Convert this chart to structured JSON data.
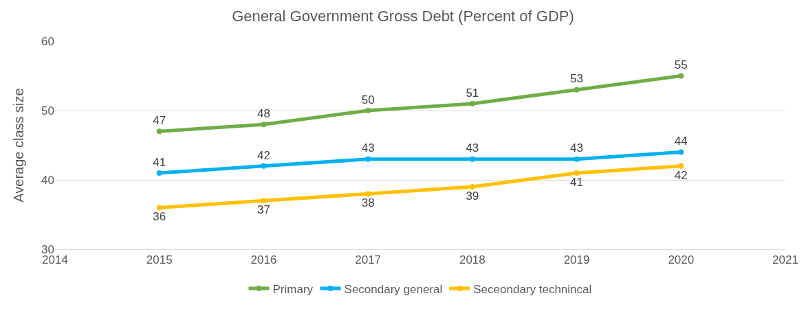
{
  "chart_data": {
    "type": "line",
    "title": "General Government Gross Debt (Percent of GDP)",
    "ylabel": "Average class size",
    "x": [
      2015,
      2016,
      2017,
      2018,
      2019,
      2020
    ],
    "series": [
      {
        "name": "Primary",
        "color": "#70ad47",
        "values": [
          47,
          48,
          50,
          51,
          53,
          55
        ]
      },
      {
        "name": "Secondary general",
        "color": "#00b0f0",
        "values": [
          41,
          42,
          43,
          43,
          43,
          44
        ]
      },
      {
        "name": "Seceondary technincal",
        "color": "#ffc000",
        "values": [
          36,
          37,
          38,
          39,
          41,
          42
        ]
      }
    ],
    "xlim": [
      2014,
      2021
    ],
    "xticks": [
      2014,
      2015,
      2016,
      2017,
      2018,
      2019,
      2020,
      2021
    ],
    "ylim": [
      30,
      60
    ],
    "yticks": [
      30,
      40,
      50,
      60
    ],
    "grid": "y",
    "legend": "bottom",
    "marker": "circle",
    "line_style": "solid",
    "data_labels": true
  }
}
